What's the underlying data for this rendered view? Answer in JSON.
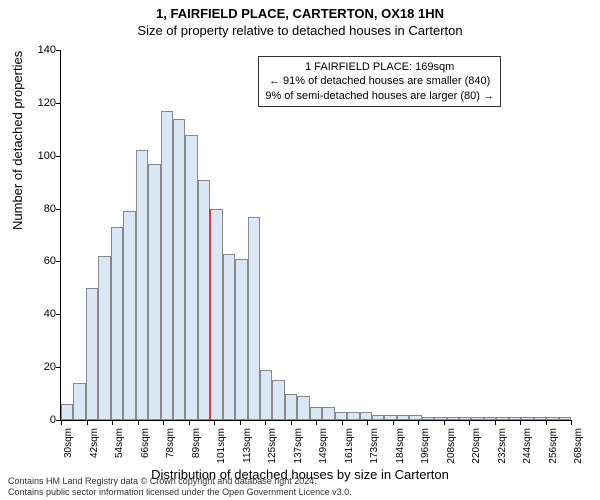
{
  "title": "1, FAIRFIELD PLACE, CARTERTON, OX18 1HN",
  "subtitle": "Size of property relative to detached houses in Carterton",
  "y_axis_label": "Number of detached properties",
  "x_axis_label": "Distribution of detached houses by size in Carterton",
  "chart": {
    "type": "histogram",
    "ylim": [
      0,
      140
    ],
    "ytick_step": 20,
    "background_color": "#ffffff",
    "bar_color": "#dbe7f5",
    "bar_border_color": "#888888",
    "marker_color": "#e23b3b",
    "marker_x_index": 12,
    "x_ticks": [
      "30sqm",
      "42sqm",
      "54sqm",
      "66sqm",
      "78sqm",
      "89sqm",
      "101sqm",
      "113sqm",
      "125sqm",
      "137sqm",
      "149sqm",
      "161sqm",
      "173sqm",
      "184sqm",
      "196sqm",
      "208sqm",
      "220sqm",
      "232sqm",
      "244sqm",
      "256sqm",
      "268sqm"
    ],
    "values": [
      6,
      14,
      50,
      62,
      73,
      79,
      102,
      97,
      117,
      114,
      108,
      91,
      80,
      63,
      61,
      77,
      19,
      15,
      10,
      9,
      5,
      5,
      3,
      3,
      3,
      2,
      2,
      2,
      2,
      1,
      1,
      1,
      1,
      1,
      1,
      1,
      1,
      1,
      1,
      1,
      1
    ]
  },
  "annotation": {
    "line1": "1 FAIRFIELD PLACE: 169sqm",
    "line2": "← 91% of detached houses are smaller (840)",
    "line3": "9% of semi-detached houses are larger (80) →"
  },
  "footer": {
    "line1": "Contains HM Land Registry data © Crown copyright and database right 2024.",
    "line2": "Contains public sector information licensed under the Open Government Licence v3.0."
  }
}
